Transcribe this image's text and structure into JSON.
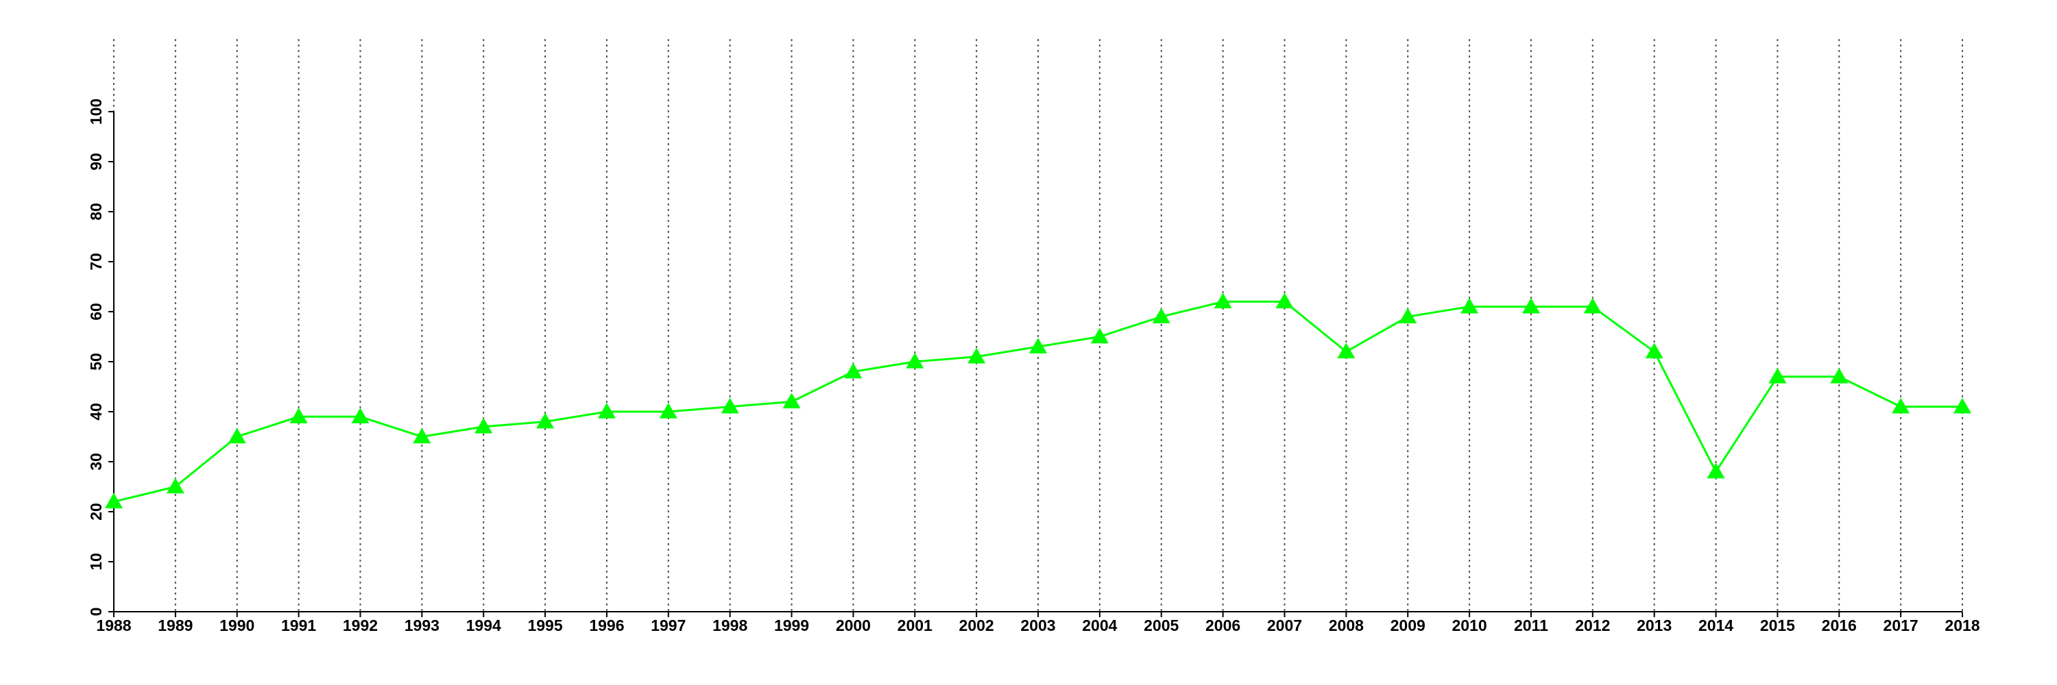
{
  "chart_data": {
    "type": "line",
    "marker": "triangle",
    "color": "#00ff00",
    "x": [
      1988,
      1989,
      1990,
      1991,
      1992,
      1993,
      1994,
      1995,
      1996,
      1997,
      1998,
      1999,
      2000,
      2001,
      2002,
      2003,
      2004,
      2005,
      2006,
      2007,
      2008,
      2009,
      2010,
      2011,
      2012,
      2013,
      2014,
      2015,
      2016,
      2017,
      2018
    ],
    "values": [
      22,
      25,
      35,
      39,
      39,
      35,
      37,
      38,
      40,
      40,
      41,
      42,
      48,
      50,
      51,
      53,
      55,
      59,
      62,
      62,
      52,
      59,
      61,
      61,
      61,
      52,
      28,
      47,
      47,
      41,
      41
    ],
    "xlim": [
      1988,
      2018
    ],
    "xticks": [
      1988,
      1989,
      1990,
      1991,
      1992,
      1993,
      1994,
      1995,
      1996,
      1997,
      1998,
      1999,
      2000,
      2001,
      2002,
      2003,
      2004,
      2005,
      2006,
      2007,
      2008,
      2009,
      2010,
      2011,
      2012,
      2013,
      2014,
      2015,
      2016,
      2017,
      2018
    ],
    "ylim": [
      0,
      100
    ],
    "yticks": [
      0,
      10,
      20,
      30,
      40,
      50,
      60,
      70,
      80,
      90,
      100
    ],
    "grid": "x"
  }
}
